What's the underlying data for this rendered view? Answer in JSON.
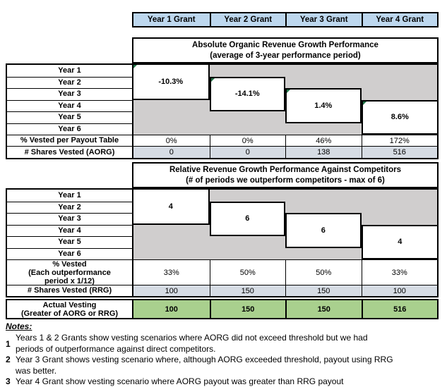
{
  "grant_headers": [
    "Year 1 Grant",
    "Year 2 Grant",
    "Year 3 Grant",
    "Year 4 Grant"
  ],
  "years": [
    "Year 1",
    "Year 2",
    "Year 3",
    "Year 4",
    "Year 5",
    "Year 6"
  ],
  "aorg": {
    "title_line1": "Absolute Organic Revenue Growth Performance",
    "title_line2": "(average of 3-year performance period)",
    "values": [
      "-10.3%",
      "-14.1%",
      "1.4%",
      "8.6%"
    ],
    "pct_vested_label": "% Vested per Payout Table",
    "pct_vested": [
      "0%",
      "0%",
      "46%",
      "172%"
    ],
    "shares_label": "# Shares Vested (AORG)",
    "shares": [
      "0",
      "0",
      "138",
      "516"
    ]
  },
  "rrg": {
    "title_line1": "Relative Revenue Growth Performance Against Competitors",
    "title_line2": "(# of periods we outperform competitors - max of 6)",
    "values": [
      "4",
      "6",
      "6",
      "4"
    ],
    "pct_label_line1": "% Vested",
    "pct_label_line2": "(Each outperformance",
    "pct_label_line3": "period x 1/12)",
    "pct_vested": [
      "33%",
      "50%",
      "50%",
      "33%"
    ],
    "shares_label": "# Shares Vested (RRG)",
    "shares": [
      "100",
      "150",
      "150",
      "100"
    ]
  },
  "actual": {
    "label_line1": "Actual Vesting",
    "label_line2": "(Greater of AORG or RRG)",
    "values": [
      "100",
      "150",
      "150",
      "516"
    ]
  },
  "notes": {
    "heading": "Notes:",
    "items": [
      {
        "num": "1",
        "line1": "Years 1 & 2 Grants show vesting scenarios where AORG did not exceed threshold but we had",
        "line2": "periods of outperformance against direct competitors."
      },
      {
        "num": "2",
        "line1": "Year 3 Grant shows vesting scenario where, although AORG exceeded threshold, payout using RRG",
        "line2": "was better."
      },
      {
        "num": "3",
        "line1": "Year 4 Grant show vesting scenario where AORG payout was greater than RRG payout",
        "line2": ""
      }
    ]
  },
  "colors": {
    "header_blue": "#BDD7EE",
    "band_gray": "#D0CECE",
    "shares_blue": "#D6DCE4",
    "vesting_green": "#A9D08E",
    "flag_green": "#217346"
  }
}
